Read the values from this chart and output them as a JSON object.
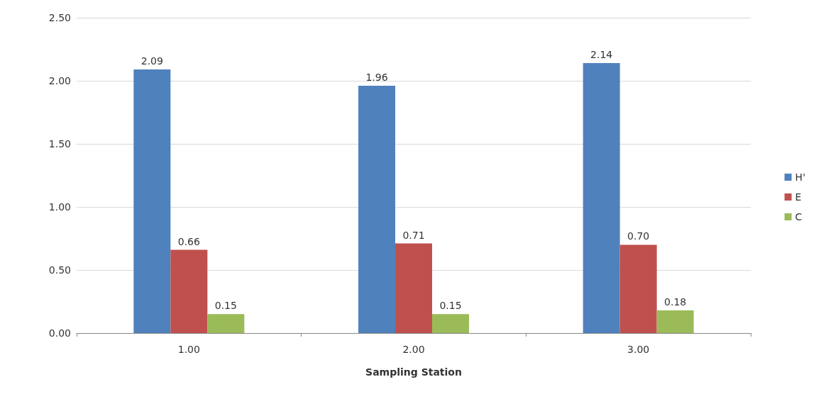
{
  "chart_data": {
    "type": "bar",
    "xlabel": "Sampling Station",
    "categories": [
      "1.00",
      "2.00",
      "3.00"
    ],
    "series": [
      {
        "name": "H'",
        "color": "#4f81bd",
        "values": [
          2.09,
          1.96,
          2.14
        ],
        "value_labels": [
          "2.09",
          "1.96",
          "2.14"
        ]
      },
      {
        "name": "E",
        "color": "#c0504d",
        "values": [
          0.66,
          0.71,
          0.7
        ],
        "value_labels": [
          "0.66",
          "0.71",
          "0.70"
        ]
      },
      {
        "name": "C",
        "color": "#9bbb59",
        "values": [
          0.15,
          0.15,
          0.18
        ],
        "value_labels": [
          "0.15",
          "0.15",
          "0.18"
        ]
      }
    ],
    "ylim": [
      0,
      2.5
    ],
    "yticks": [
      {
        "value": 0,
        "label": "0.00"
      },
      {
        "value": 0.5,
        "label": "0.50"
      },
      {
        "value": 1,
        "label": "1.00"
      },
      {
        "value": 1.5,
        "label": "1.50"
      },
      {
        "value": 2,
        "label": "2.00"
      },
      {
        "value": 2.5,
        "label": "2.50"
      }
    ],
    "grid": "y",
    "legend": "right"
  }
}
